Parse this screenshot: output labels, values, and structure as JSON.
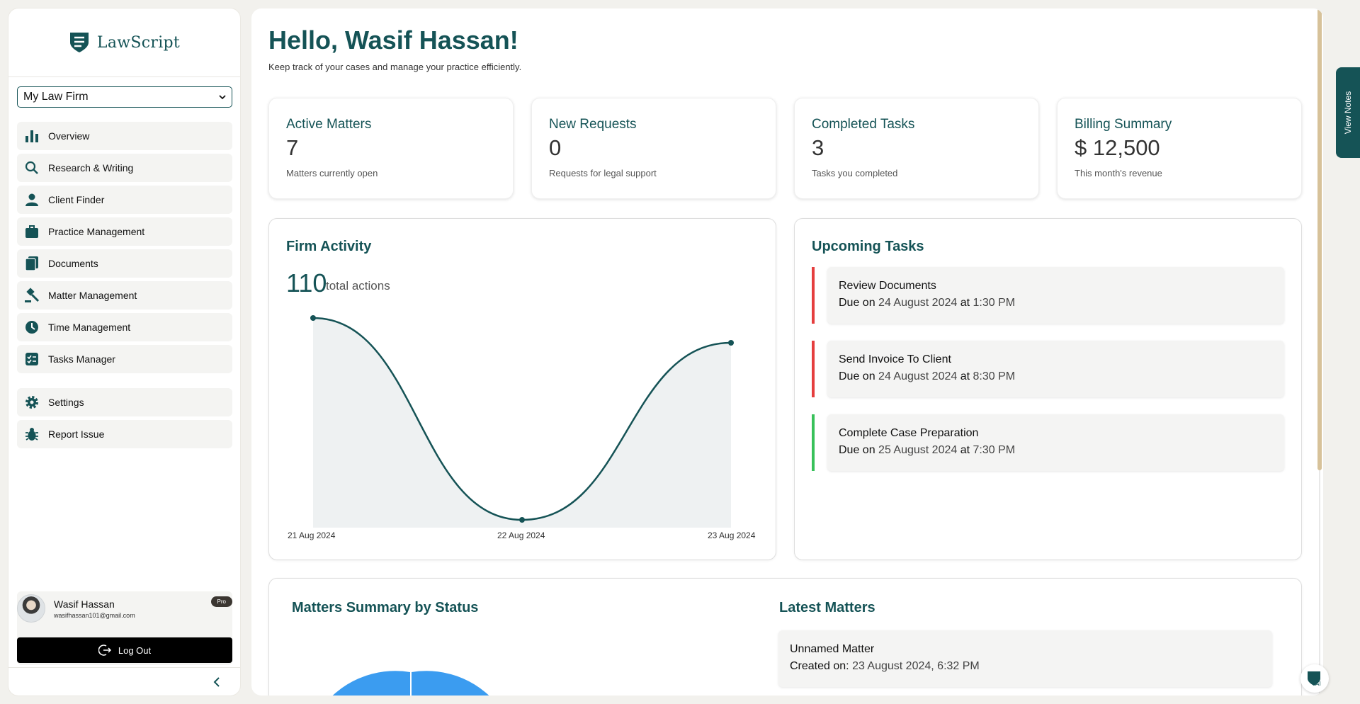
{
  "app": {
    "name": "LawScript"
  },
  "firm_select": {
    "value": "My Law Firm"
  },
  "nav": [
    {
      "label": "Overview",
      "icon": "bar-chart-icon"
    },
    {
      "label": "Research & Writing",
      "icon": "search-icon"
    },
    {
      "label": "Client Finder",
      "icon": "user-icon"
    },
    {
      "label": "Practice Management",
      "icon": "briefcase-icon"
    },
    {
      "label": "Documents",
      "icon": "documents-icon"
    },
    {
      "label": "Matter Management",
      "icon": "gavel-icon"
    },
    {
      "label": "Time Management",
      "icon": "clock-icon"
    },
    {
      "label": "Tasks Manager",
      "icon": "checklist-icon"
    }
  ],
  "nav_secondary": [
    {
      "label": "Settings",
      "icon": "gear-icon"
    },
    {
      "label": "Report Issue",
      "icon": "bug-icon"
    }
  ],
  "user": {
    "name": "Wasif Hassan",
    "email": "wasifhassan101@gmail.com",
    "badge": "Pro",
    "logout_label": "Log Out"
  },
  "header": {
    "greeting": "Hello, Wasif Hassan!",
    "subtitle": "Keep track of your cases and manage your practice efficiently."
  },
  "stats": [
    {
      "title": "Active Matters",
      "value": "7",
      "desc": "Matters currently open"
    },
    {
      "title": "New Requests",
      "value": "0",
      "desc": "Requests for legal support"
    },
    {
      "title": "Completed Tasks",
      "value": "3",
      "desc": "Tasks you completed"
    },
    {
      "title": "Billing Summary",
      "value": "$ 12,500",
      "desc": "This month's revenue"
    }
  ],
  "activity": {
    "title": "Firm Activity",
    "total": "110",
    "unit": "total actions",
    "chart_data": {
      "type": "area",
      "x": [
        "21 Aug 2024",
        "22 Aug 2024",
        "23 Aug 2024"
      ],
      "series": [
        {
          "values": [
            58,
            1,
            51
          ]
        }
      ],
      "ylim": [
        0,
        60
      ],
      "grid": false
    },
    "line_color": "#155356",
    "fill_color": "#eef1f2"
  },
  "upcoming": {
    "title": "Upcoming Tasks",
    "due_prefix": "Due on",
    "tasks": [
      {
        "title": "Review Documents",
        "date": "24 August 2024",
        "at": "at",
        "time": "1:30 PM",
        "color": "#e53e3e"
      },
      {
        "title": "Send Invoice To Client",
        "date": "24 August 2024",
        "at": "at",
        "time": "8:30 PM",
        "color": "#e53e3e"
      },
      {
        "title": "Complete Case Preparation",
        "date": "25 August 2024",
        "at": "at",
        "time": "7:30 PM",
        "color": "#38c15a"
      }
    ]
  },
  "matters_summary": {
    "title": "Matters Summary by Status",
    "pie_color": "#3b9cf0"
  },
  "latest_matters": {
    "title": "Latest Matters",
    "items": [
      {
        "title": "Unnamed Matter",
        "created_label": "Created on:",
        "created": "23 August 2024, 6:32 PM"
      }
    ]
  },
  "view_notes": "View Notes",
  "colors": {
    "brand": "#155356",
    "accent_scroll": "#d7c29a"
  }
}
